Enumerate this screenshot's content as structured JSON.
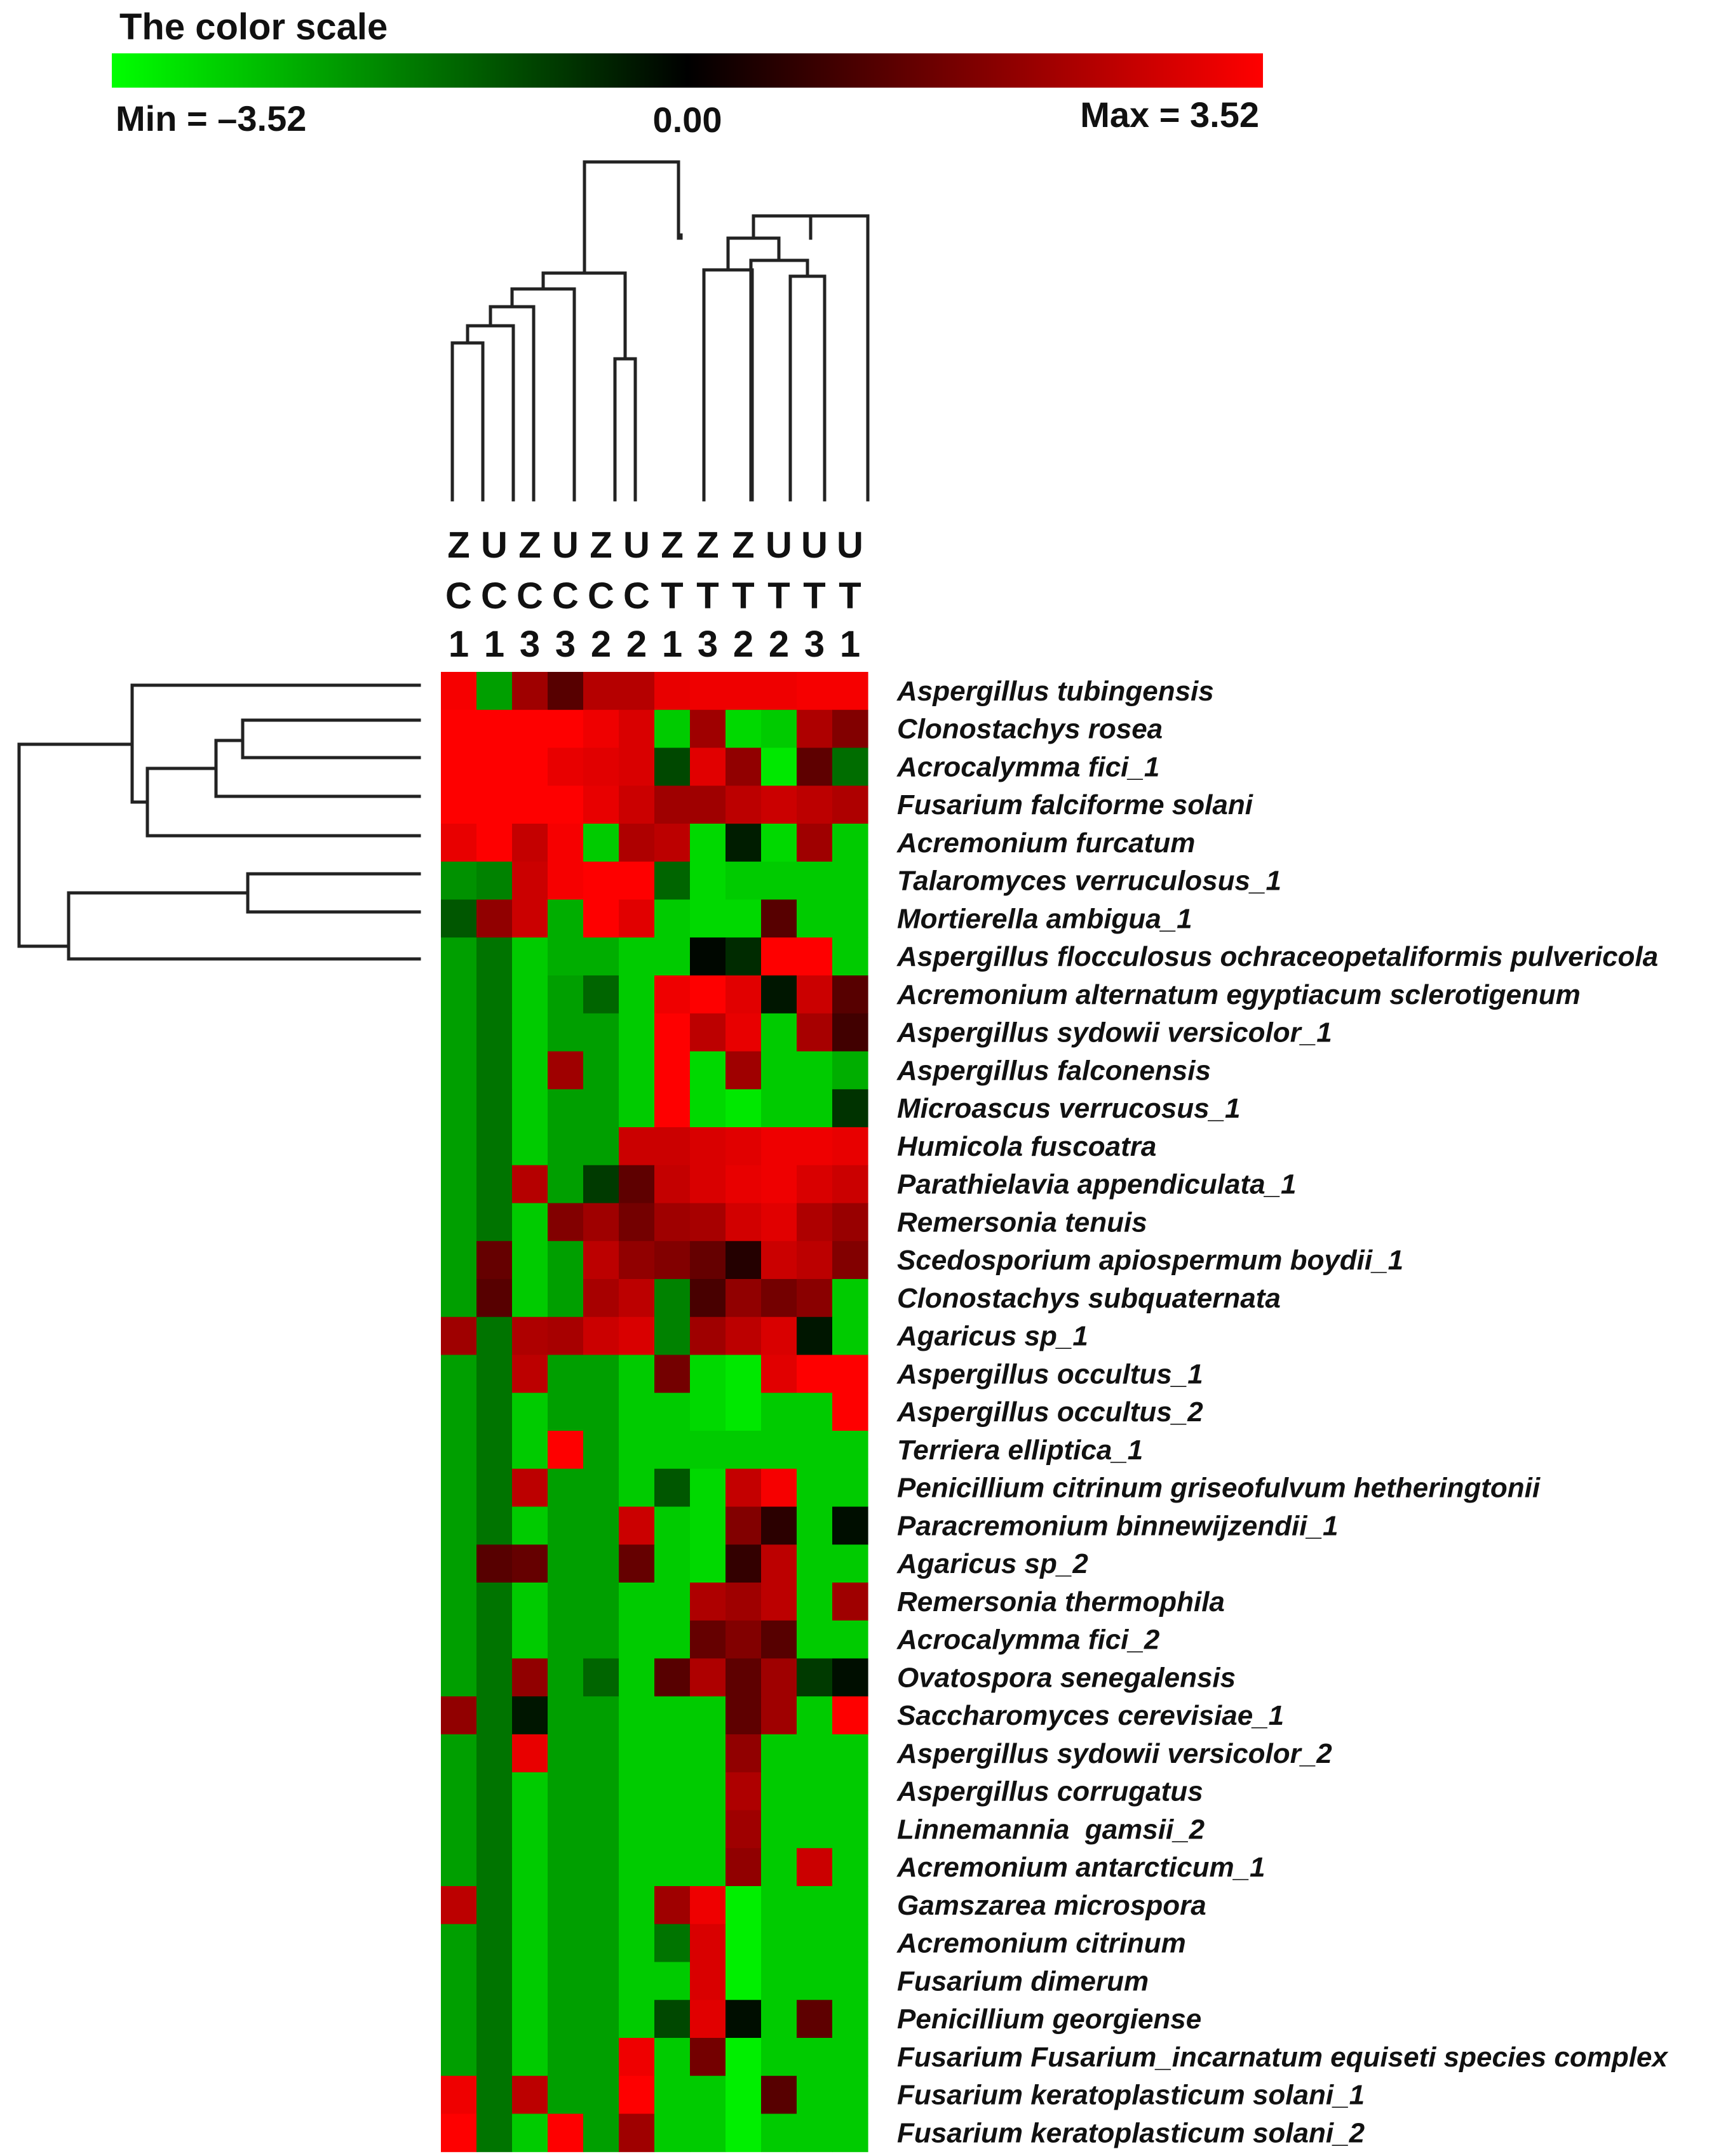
{
  "color_scale": {
    "title": "The color scale",
    "min_label": "Min = –3.52",
    "mid_label": "0.00",
    "max_label": "Max = 3.52",
    "min_color": "#00ff00",
    "mid_color": "#000000",
    "max_color": "#ff0000"
  },
  "chart_data": {
    "type": "heatmap",
    "title": "The color scale",
    "value_range": [
      -3.52,
      3.52
    ],
    "columns": [
      {
        "line1": "Z",
        "line2": "C",
        "line3": "1"
      },
      {
        "line1": "U",
        "line2": "C",
        "line3": "1"
      },
      {
        "line1": "Z",
        "line2": "C",
        "line3": "3"
      },
      {
        "line1": "U",
        "line2": "C",
        "line3": "3"
      },
      {
        "line1": "Z",
        "line2": "C",
        "line3": "2"
      },
      {
        "line1": "U",
        "line2": "C",
        "line3": "2"
      },
      {
        "line1": "Z",
        "line2": "T",
        "line3": "1"
      },
      {
        "line1": "Z",
        "line2": "T",
        "line3": "3"
      },
      {
        "line1": "Z",
        "line2": "T",
        "line3": "2"
      },
      {
        "line1": "U",
        "line2": "T",
        "line3": "2"
      },
      {
        "line1": "U",
        "line2": "T",
        "line3": "3"
      },
      {
        "line1": "U",
        "line2": "T",
        "line3": "1"
      }
    ],
    "rows": [
      "Aspergillus tubingensis",
      "Clonostachys rosea",
      "Acrocalymma fici_1",
      "Fusarium falciforme solani",
      "Acremonium furcatum",
      "Talaromyces verruculosus_1",
      "Mortierella ambigua_1",
      "Aspergillus flocculosus ochraceopetaliformis pulvericola",
      "Acremonium alternatum egyptiacum sclerotigenum",
      "Aspergillus sydowii versicolor_1",
      "Aspergillus falconensis",
      "Microascus verrucosus_1",
      "Humicola fuscoatra",
      "Parathielavia appendiculata_1",
      "Remersonia tenuis",
      "Scedosporium apiospermum boydii_1",
      "Clonostachys subquaternata",
      "Agaricus sp_1",
      "Aspergillus occultus_1",
      "Aspergillus occultus_2",
      "Terriera elliptica_1",
      "Penicillium citrinum griseofulvum hetheringtonii",
      "Paracremonium binnewijzendii_1",
      "Agaricus sp_2",
      "Remersonia thermophila",
      "Acrocalymma fici_2",
      "Ovatospora senegalensis",
      "Saccharomyces cerevisiae_1",
      "Aspergillus sydowii versicolor_2",
      "Aspergillus corrugatus",
      "Linnemannia  gamsii_2",
      "Acremonium antarcticum_1",
      "Gamszarea microspora",
      "Acremonium citrinum",
      "Fusarium dimerum",
      "Penicillium georgiense",
      "Fusarium Fusarium_incarnatum equiseti species complex",
      "Fusarium keratoplasticum solani_1",
      "Fusarium keratoplasticum solani_2"
    ],
    "values": [
      [
        3.4,
        -2.2,
        2.2,
        1.2,
        2.5,
        2.5,
        3.2,
        3.3,
        3.3,
        3.3,
        3.4,
        3.4
      ],
      [
        3.5,
        3.5,
        3.5,
        3.5,
        3.3,
        3.0,
        -2.8,
        2.2,
        -3.0,
        -2.8,
        2.4,
        1.8
      ],
      [
        3.5,
        3.5,
        3.5,
        3.2,
        3.1,
        3.0,
        -1.0,
        3.1,
        2.0,
        -3.2,
        1.3,
        -1.5
      ],
      [
        3.5,
        3.5,
        3.5,
        3.5,
        3.2,
        2.8,
        2.2,
        2.2,
        2.6,
        2.8,
        2.6,
        2.4
      ],
      [
        3.2,
        3.5,
        2.7,
        3.4,
        -2.8,
        2.4,
        2.6,
        -3.0,
        -0.4,
        -3.0,
        2.2,
        -2.8
      ],
      [
        -2.0,
        -1.8,
        2.8,
        3.4,
        3.5,
        3.5,
        -1.4,
        -3.0,
        -2.8,
        -2.8,
        -2.8,
        -2.8
      ],
      [
        -1.2,
        2.0,
        2.8,
        -2.4,
        3.5,
        3.1,
        -2.8,
        -3.0,
        -3.0,
        1.2,
        -2.8,
        -2.8
      ],
      [
        -2.2,
        -1.6,
        -2.8,
        -2.4,
        -2.4,
        -2.8,
        -2.8,
        -0.1,
        -0.6,
        3.5,
        3.5,
        -2.8
      ],
      [
        -2.2,
        -1.6,
        -2.8,
        -2.2,
        -1.4,
        -2.8,
        3.3,
        3.5,
        3.1,
        -0.3,
        2.8,
        1.2
      ],
      [
        -2.2,
        -1.6,
        -2.8,
        -2.2,
        -2.2,
        -2.8,
        3.5,
        2.6,
        3.2,
        -2.8,
        2.3,
        0.9
      ],
      [
        -2.2,
        -1.6,
        -2.8,
        2.2,
        -2.2,
        -2.8,
        3.5,
        -3.0,
        2.2,
        -2.8,
        -2.8,
        -2.4
      ],
      [
        -2.2,
        -1.6,
        -2.8,
        -2.2,
        -2.2,
        -2.8,
        3.5,
        -3.0,
        -3.2,
        -2.8,
        -2.8,
        -0.7
      ],
      [
        -2.2,
        -1.6,
        -2.8,
        -2.2,
        -2.2,
        2.8,
        2.8,
        3.0,
        3.1,
        3.3,
        3.3,
        3.2
      ],
      [
        -2.2,
        -1.6,
        2.5,
        -2.2,
        -0.8,
        1.3,
        2.7,
        3.0,
        3.2,
        3.3,
        3.0,
        2.8
      ],
      [
        -2.2,
        -1.6,
        -2.8,
        1.8,
        2.2,
        1.6,
        2.2,
        2.3,
        2.9,
        3.1,
        2.4,
        2.1
      ],
      [
        -2.2,
        1.4,
        -2.8,
        -2.2,
        2.6,
        2.0,
        1.8,
        1.4,
        0.5,
        2.8,
        2.6,
        1.8
      ],
      [
        -2.2,
        1.2,
        -2.8,
        -2.2,
        2.3,
        2.6,
        -1.8,
        1.0,
        2.0,
        1.6,
        1.9,
        -2.8
      ],
      [
        2.2,
        -1.6,
        2.4,
        2.3,
        2.8,
        3.0,
        -1.8,
        2.2,
        2.6,
        3.0,
        -0.3,
        -2.8
      ],
      [
        -2.2,
        -1.6,
        2.6,
        -2.2,
        -2.2,
        -2.8,
        1.6,
        -3.0,
        -3.2,
        3.1,
        3.5,
        3.5
      ],
      [
        -2.2,
        -1.6,
        -2.8,
        -2.2,
        -2.2,
        -2.8,
        -2.8,
        -3.0,
        -3.2,
        -2.8,
        -2.8,
        3.5
      ],
      [
        -2.2,
        -1.6,
        -2.8,
        3.5,
        -2.2,
        -2.8,
        -2.8,
        -2.8,
        -2.8,
        -2.8,
        -2.8,
        -2.8
      ],
      [
        -2.2,
        -1.6,
        2.6,
        -2.2,
        -2.2,
        -2.8,
        -1.2,
        -3.0,
        2.7,
        3.4,
        -2.8,
        -2.8
      ],
      [
        -2.2,
        -1.6,
        -2.8,
        -2.2,
        -2.2,
        2.8,
        -2.8,
        -3.0,
        1.8,
        0.6,
        -2.8,
        -0.2
      ],
      [
        -2.2,
        1.2,
        1.4,
        -2.2,
        -2.2,
        1.4,
        -2.8,
        -3.0,
        0.7,
        2.6,
        -2.8,
        -2.8
      ],
      [
        -2.2,
        -1.6,
        -2.8,
        -2.2,
        -2.2,
        -2.8,
        -2.8,
        2.4,
        2.2,
        2.6,
        -2.8,
        2.2
      ],
      [
        -2.2,
        -1.6,
        -2.8,
        -2.2,
        -2.2,
        -2.8,
        -2.8,
        1.4,
        1.8,
        1.2,
        -2.8,
        -2.8
      ],
      [
        -2.2,
        -1.6,
        2.0,
        -2.2,
        -1.4,
        -2.8,
        1.2,
        2.4,
        1.3,
        2.2,
        -0.8,
        -0.2
      ],
      [
        2.0,
        -1.6,
        -0.3,
        -2.2,
        -2.2,
        -2.8,
        -2.8,
        -2.8,
        1.3,
        2.2,
        -2.8,
        3.5
      ],
      [
        -2.2,
        -1.6,
        3.2,
        -2.2,
        -2.2,
        -2.8,
        -2.8,
        -2.8,
        2.0,
        -2.8,
        -2.8,
        -2.8
      ],
      [
        -2.2,
        -1.6,
        -2.8,
        -2.2,
        -2.2,
        -2.8,
        -2.8,
        -2.8,
        2.4,
        -2.8,
        -2.8,
        -2.8
      ],
      [
        -2.2,
        -1.6,
        -2.8,
        -2.2,
        -2.2,
        -2.8,
        -2.8,
        -2.8,
        2.2,
        -2.8,
        -2.8,
        -2.8
      ],
      [
        -2.2,
        -1.6,
        -2.8,
        -2.2,
        -2.2,
        -2.8,
        -2.8,
        -2.8,
        2.0,
        -2.8,
        2.8,
        -2.8
      ],
      [
        2.6,
        -1.6,
        -2.8,
        -2.2,
        -2.2,
        -2.8,
        2.2,
        3.3,
        -3.3,
        -2.8,
        -2.8,
        -2.8
      ],
      [
        -2.2,
        -1.6,
        -2.8,
        -2.2,
        -2.2,
        -2.8,
        -1.6,
        3.0,
        -3.3,
        -2.8,
        -2.8,
        -2.8
      ],
      [
        -2.2,
        -1.6,
        -2.8,
        -2.2,
        -2.2,
        -2.8,
        -2.8,
        3.0,
        -3.3,
        -2.8,
        -2.8,
        -2.8
      ],
      [
        -2.2,
        -1.6,
        -2.8,
        -2.2,
        -2.2,
        -2.8,
        -1.0,
        3.1,
        -0.2,
        -2.8,
        1.3,
        -2.8
      ],
      [
        -2.2,
        -1.6,
        -2.8,
        -2.2,
        -2.2,
        3.3,
        -2.8,
        1.6,
        -3.3,
        -2.8,
        -2.8,
        -2.8
      ],
      [
        3.3,
        -1.6,
        2.6,
        -2.2,
        -2.2,
        3.5,
        -2.8,
        -2.8,
        -3.3,
        1.2,
        -2.8,
        -2.8
      ],
      [
        3.5,
        -1.6,
        -2.8,
        3.5,
        -2.2,
        2.2,
        -2.8,
        -2.8,
        -3.3,
        -2.8,
        -2.8,
        -2.8
      ]
    ]
  }
}
